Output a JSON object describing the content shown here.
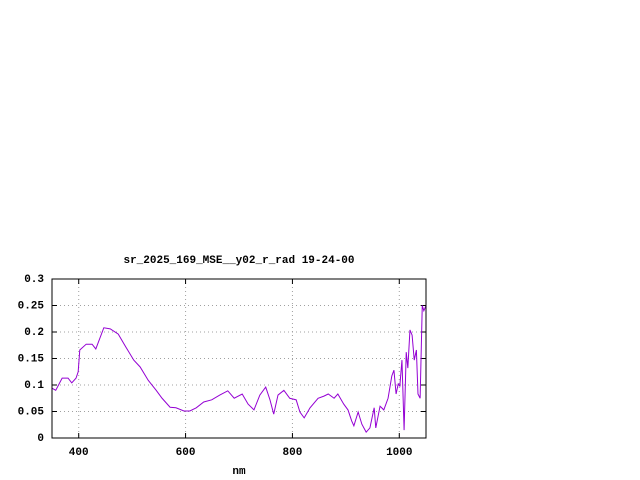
{
  "chart_data": {
    "type": "line",
    "title": "sr_2025_169_MSE__y02_r_rad 19-24-00",
    "x_label": "nm",
    "x": [
      350,
      357,
      369,
      380,
      387,
      395,
      399,
      402,
      414,
      425,
      432,
      447,
      459,
      474,
      488,
      503,
      515,
      530,
      545,
      556,
      571,
      582,
      597,
      608,
      620,
      634,
      649,
      664,
      679,
      691,
      706,
      717,
      728,
      739,
      750,
      758,
      765,
      773,
      784,
      795,
      807,
      814,
      822,
      833,
      848,
      859,
      867,
      878,
      885,
      896,
      904,
      911,
      915,
      923,
      930,
      938,
      945,
      953,
      956,
      964,
      971,
      979,
      986,
      990,
      994,
      998,
      1001,
      1005,
      1009,
      1013,
      1016,
      1020,
      1024,
      1028,
      1032,
      1035,
      1039,
      1043,
      1046,
      1050
    ],
    "series": [
      {
        "color": "#9400d3",
        "values": [
          0.094,
          0.09,
          0.113,
          0.113,
          0.104,
          0.113,
          0.125,
          0.166,
          0.177,
          0.177,
          0.168,
          0.208,
          0.206,
          0.196,
          0.172,
          0.147,
          0.134,
          0.109,
          0.09,
          0.075,
          0.058,
          0.057,
          0.051,
          0.051,
          0.057,
          0.068,
          0.072,
          0.081,
          0.089,
          0.075,
          0.083,
          0.064,
          0.053,
          0.081,
          0.096,
          0.072,
          0.045,
          0.081,
          0.09,
          0.075,
          0.072,
          0.049,
          0.038,
          0.057,
          0.075,
          0.079,
          0.083,
          0.075,
          0.083,
          0.064,
          0.053,
          0.032,
          0.023,
          0.049,
          0.026,
          0.011,
          0.019,
          0.057,
          0.019,
          0.06,
          0.053,
          0.075,
          0.117,
          0.128,
          0.083,
          0.102,
          0.098,
          0.147,
          0.015,
          0.162,
          0.132,
          0.204,
          0.194,
          0.147,
          0.166,
          0.083,
          0.075,
          0.25,
          0.24,
          0.25
        ]
      }
    ],
    "xlim": [
      350,
      1050
    ],
    "xticks": [
      400,
      600,
      800,
      1000
    ],
    "ylim": [
      0,
      0.3
    ],
    "yticks": [
      0,
      0.05,
      0.1,
      0.15,
      0.2,
      0.25,
      0.3
    ],
    "grid": true
  }
}
